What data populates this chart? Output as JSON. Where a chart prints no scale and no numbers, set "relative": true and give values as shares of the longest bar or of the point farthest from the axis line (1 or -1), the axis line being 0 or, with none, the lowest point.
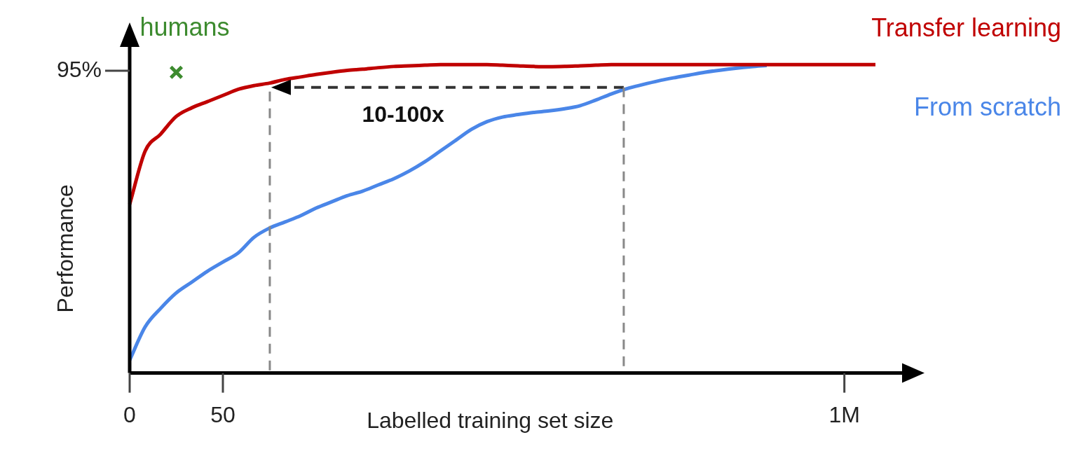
{
  "chart_data": {
    "type": "line",
    "relative": true,
    "xlabel": "Labelled training set size",
    "ylabel": "Performance",
    "categories": [
      "0",
      null,
      null,
      null,
      null,
      null,
      "50",
      null,
      null,
      null,
      null,
      null,
      null,
      null,
      null,
      null,
      null,
      null,
      null,
      null,
      null,
      null,
      null,
      null,
      null,
      null,
      null,
      null,
      null,
      null,
      null,
      null,
      null,
      null,
      null,
      null,
      null,
      null,
      null,
      null,
      null,
      null,
      null,
      null,
      null,
      null,
      "1M",
      null,
      null
    ],
    "series": [
      {
        "name": "Transfer learning",
        "color": "#c00000",
        "values": [
          0.547,
          0.72,
          0.775,
          0.832,
          0.86,
          0.88,
          0.9,
          0.92,
          0.932,
          0.94,
          0.952,
          0.96,
          0.968,
          0.975,
          0.981,
          0.985,
          0.99,
          0.994,
          0.996,
          0.998,
          1,
          1,
          1,
          1,
          0.998,
          0.996,
          0.994,
          0.993,
          0.994,
          0.996,
          0.998,
          1,
          1,
          1,
          1,
          1,
          1,
          1,
          1,
          1,
          1,
          1,
          1,
          1,
          1,
          1,
          1,
          1,
          1
        ]
      },
      {
        "name": "From scratch",
        "color": "#4a86e8",
        "values": [
          0.042,
          0.15,
          0.21,
          0.26,
          0.295,
          0.33,
          0.36,
          0.39,
          0.44,
          0.47,
          0.49,
          0.51,
          0.535,
          0.555,
          0.575,
          0.59,
          0.61,
          0.63,
          0.655,
          0.685,
          0.72,
          0.755,
          0.79,
          0.815,
          0.83,
          0.838,
          0.845,
          0.85,
          0.857,
          0.867,
          0.885,
          0.905,
          0.922,
          0.935,
          0.947,
          0.957,
          0.966,
          0.975,
          0.982,
          0.988,
          0.993,
          0.997,
          null,
          null,
          null,
          null,
          null,
          null,
          null
        ]
      },
      {
        "name": "humans",
        "type": "scatter",
        "color": "#3d8b2f",
        "marker": "cross",
        "values": [
          null,
          null,
          null,
          0.975,
          null,
          null,
          null,
          null,
          null,
          null,
          null,
          null,
          null,
          null,
          null,
          null,
          null,
          null,
          null,
          null,
          null,
          null,
          null,
          null,
          null,
          null,
          null,
          null,
          null,
          null,
          null,
          null,
          null,
          null,
          null,
          null,
          null,
          null,
          null,
          null,
          null,
          null,
          null,
          null,
          null,
          null,
          null,
          null,
          null
        ]
      }
    ],
    "annotations": [
      "95%",
      "10-100x"
    ],
    "legend": false
  }
}
